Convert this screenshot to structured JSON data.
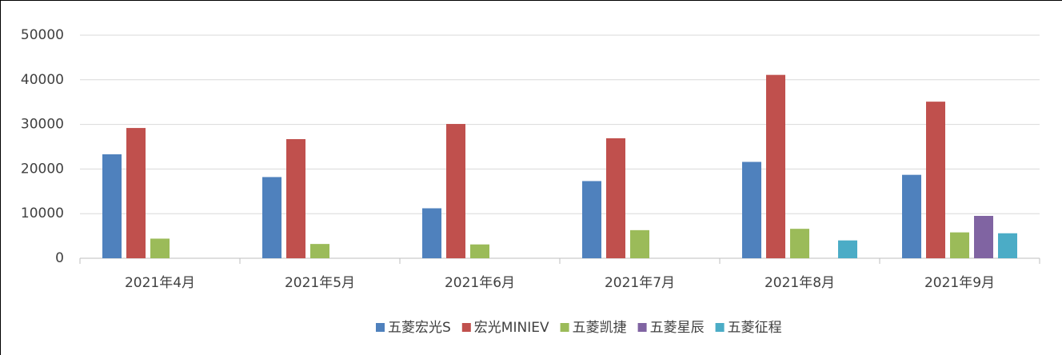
{
  "chart_data": {
    "type": "bar",
    "categories": [
      "2021年4月",
      "2021年5月",
      "2021年6月",
      "2021年7月",
      "2021年8月",
      "2021年9月"
    ],
    "series": [
      {
        "name": "五菱宏光S",
        "color": "#4f81bd",
        "values": [
          23300,
          18200,
          11200,
          17300,
          21600,
          18700
        ]
      },
      {
        "name": "宏光MINIEV",
        "color": "#c0504d",
        "values": [
          29200,
          26700,
          30100,
          26900,
          41100,
          35100
        ]
      },
      {
        "name": "五菱凯捷",
        "color": "#9bbb59",
        "values": [
          4400,
          3200,
          3100,
          6300,
          6600,
          5800
        ]
      },
      {
        "name": "五菱星辰",
        "color": "#8064a2",
        "values": [
          null,
          null,
          null,
          null,
          null,
          9500
        ]
      },
      {
        "name": "五菱征程",
        "color": "#4bacc6",
        "values": [
          null,
          null,
          null,
          null,
          4000,
          5600
        ]
      }
    ],
    "ylim": [
      0,
      50000
    ],
    "yticks": [
      0,
      10000,
      20000,
      30000,
      40000,
      50000
    ],
    "grid": true,
    "legend": "bottom"
  }
}
